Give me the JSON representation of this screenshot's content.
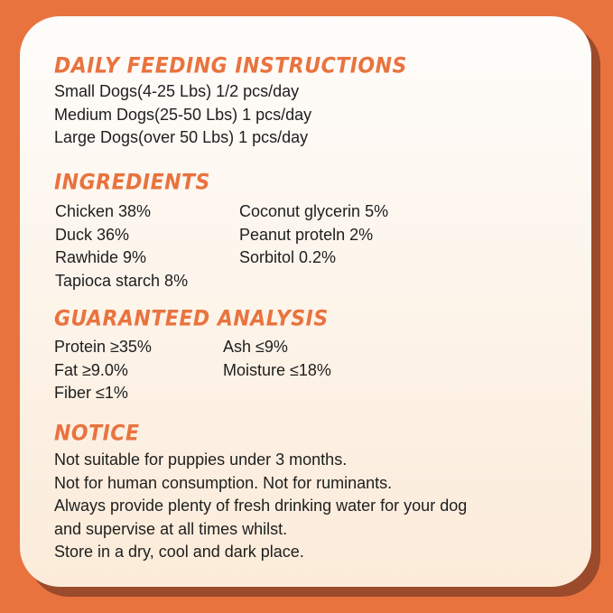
{
  "colors": {
    "background": "#e9733f",
    "heading": "#e9733f",
    "shadow": "#9b4a2b"
  },
  "feeding": {
    "title": "DAILY FEEDING INSTRUCTIONS",
    "lines": [
      "Small Dogs(4-25 Lbs) 1/2 pcs/day",
      "Medium Dogs(25-50 Lbs) 1 pcs/day",
      "Large Dogs(over 50 Lbs) 1 pcs/day"
    ]
  },
  "ingredients": {
    "title": "INGREDIENTS",
    "left": [
      "Chicken 38%",
      "Duck 36%",
      "Rawhide 9%",
      "Tapioca starch 8%"
    ],
    "right": [
      "Coconut glycerin 5%",
      "Peanut proteln 2%",
      "Sorbitol 0.2%"
    ]
  },
  "analysis": {
    "title": "GUARANTEED ANALYSIS",
    "left": [
      "Protein ≥35%",
      "Fat ≥9.0%",
      "Fiber ≤1%"
    ],
    "right": [
      "Ash ≤9%",
      "Moisture ≤18%"
    ]
  },
  "notice": {
    "title": "NOTICE",
    "lines": [
      "Not suitable for puppies under 3 months.",
      "Not for human consumption. Not for ruminants.",
      "Always provide plenty of fresh drinking water for your dog",
      "and supervise at all times whilst.",
      "Store in a dry, cool and dark place."
    ]
  }
}
